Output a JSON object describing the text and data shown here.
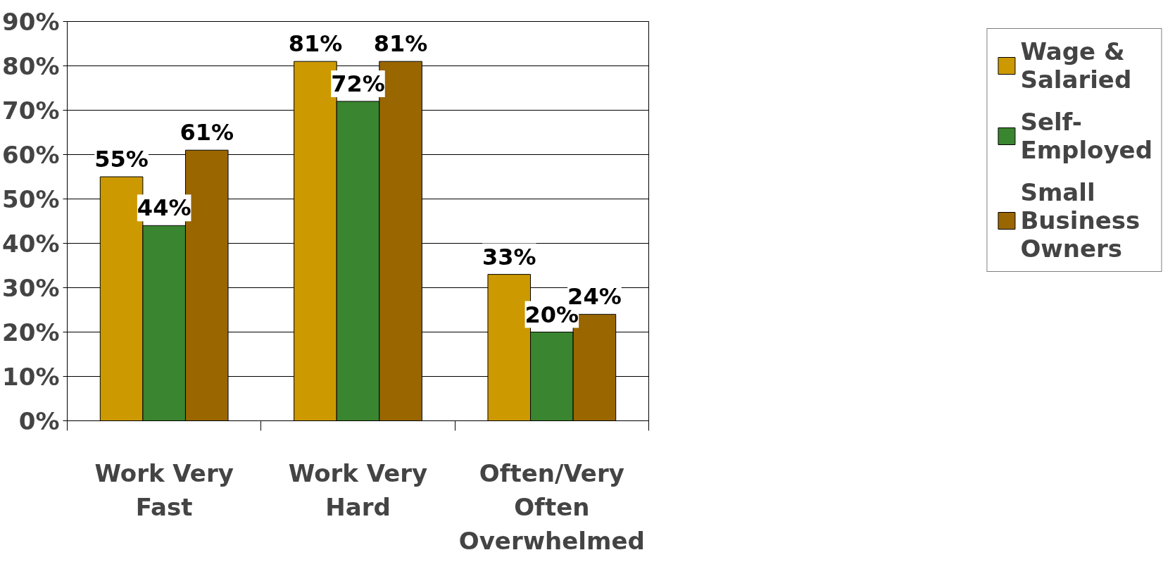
{
  "chart_data": {
    "type": "bar",
    "categories": [
      "Work Very Fast",
      "Work Very Hard",
      "Often/Very Often Overwhelmed"
    ],
    "series": [
      {
        "name": "Wage & Salaried",
        "color": "#cc9900",
        "values": [
          55,
          81,
          33
        ],
        "value_labels": [
          "55%",
          "81%",
          "33%"
        ]
      },
      {
        "name": "Self-Employed",
        "color": "#3a8530",
        "values": [
          44,
          72,
          20
        ],
        "value_labels": [
          "44%",
          "72%",
          "20%"
        ]
      },
      {
        "name": "Small Business Owners",
        "color": "#996600",
        "values": [
          61,
          81,
          24
        ],
        "value_labels": [
          "61%",
          "81%",
          "24%"
        ]
      }
    ],
    "ylim": [
      0,
      90
    ],
    "yticks": [
      {
        "value": 0,
        "label": "0%"
      },
      {
        "value": 10,
        "label": "10%"
      },
      {
        "value": 20,
        "label": "20%"
      },
      {
        "value": 30,
        "label": "30%"
      },
      {
        "value": 40,
        "label": "40%"
      },
      {
        "value": 50,
        "label": "50%"
      },
      {
        "value": 60,
        "label": "60%"
      },
      {
        "value": 70,
        "label": "70%"
      },
      {
        "value": 80,
        "label": "80%"
      },
      {
        "value": 90,
        "label": "90%"
      }
    ],
    "grid": "y",
    "legend": "right"
  }
}
